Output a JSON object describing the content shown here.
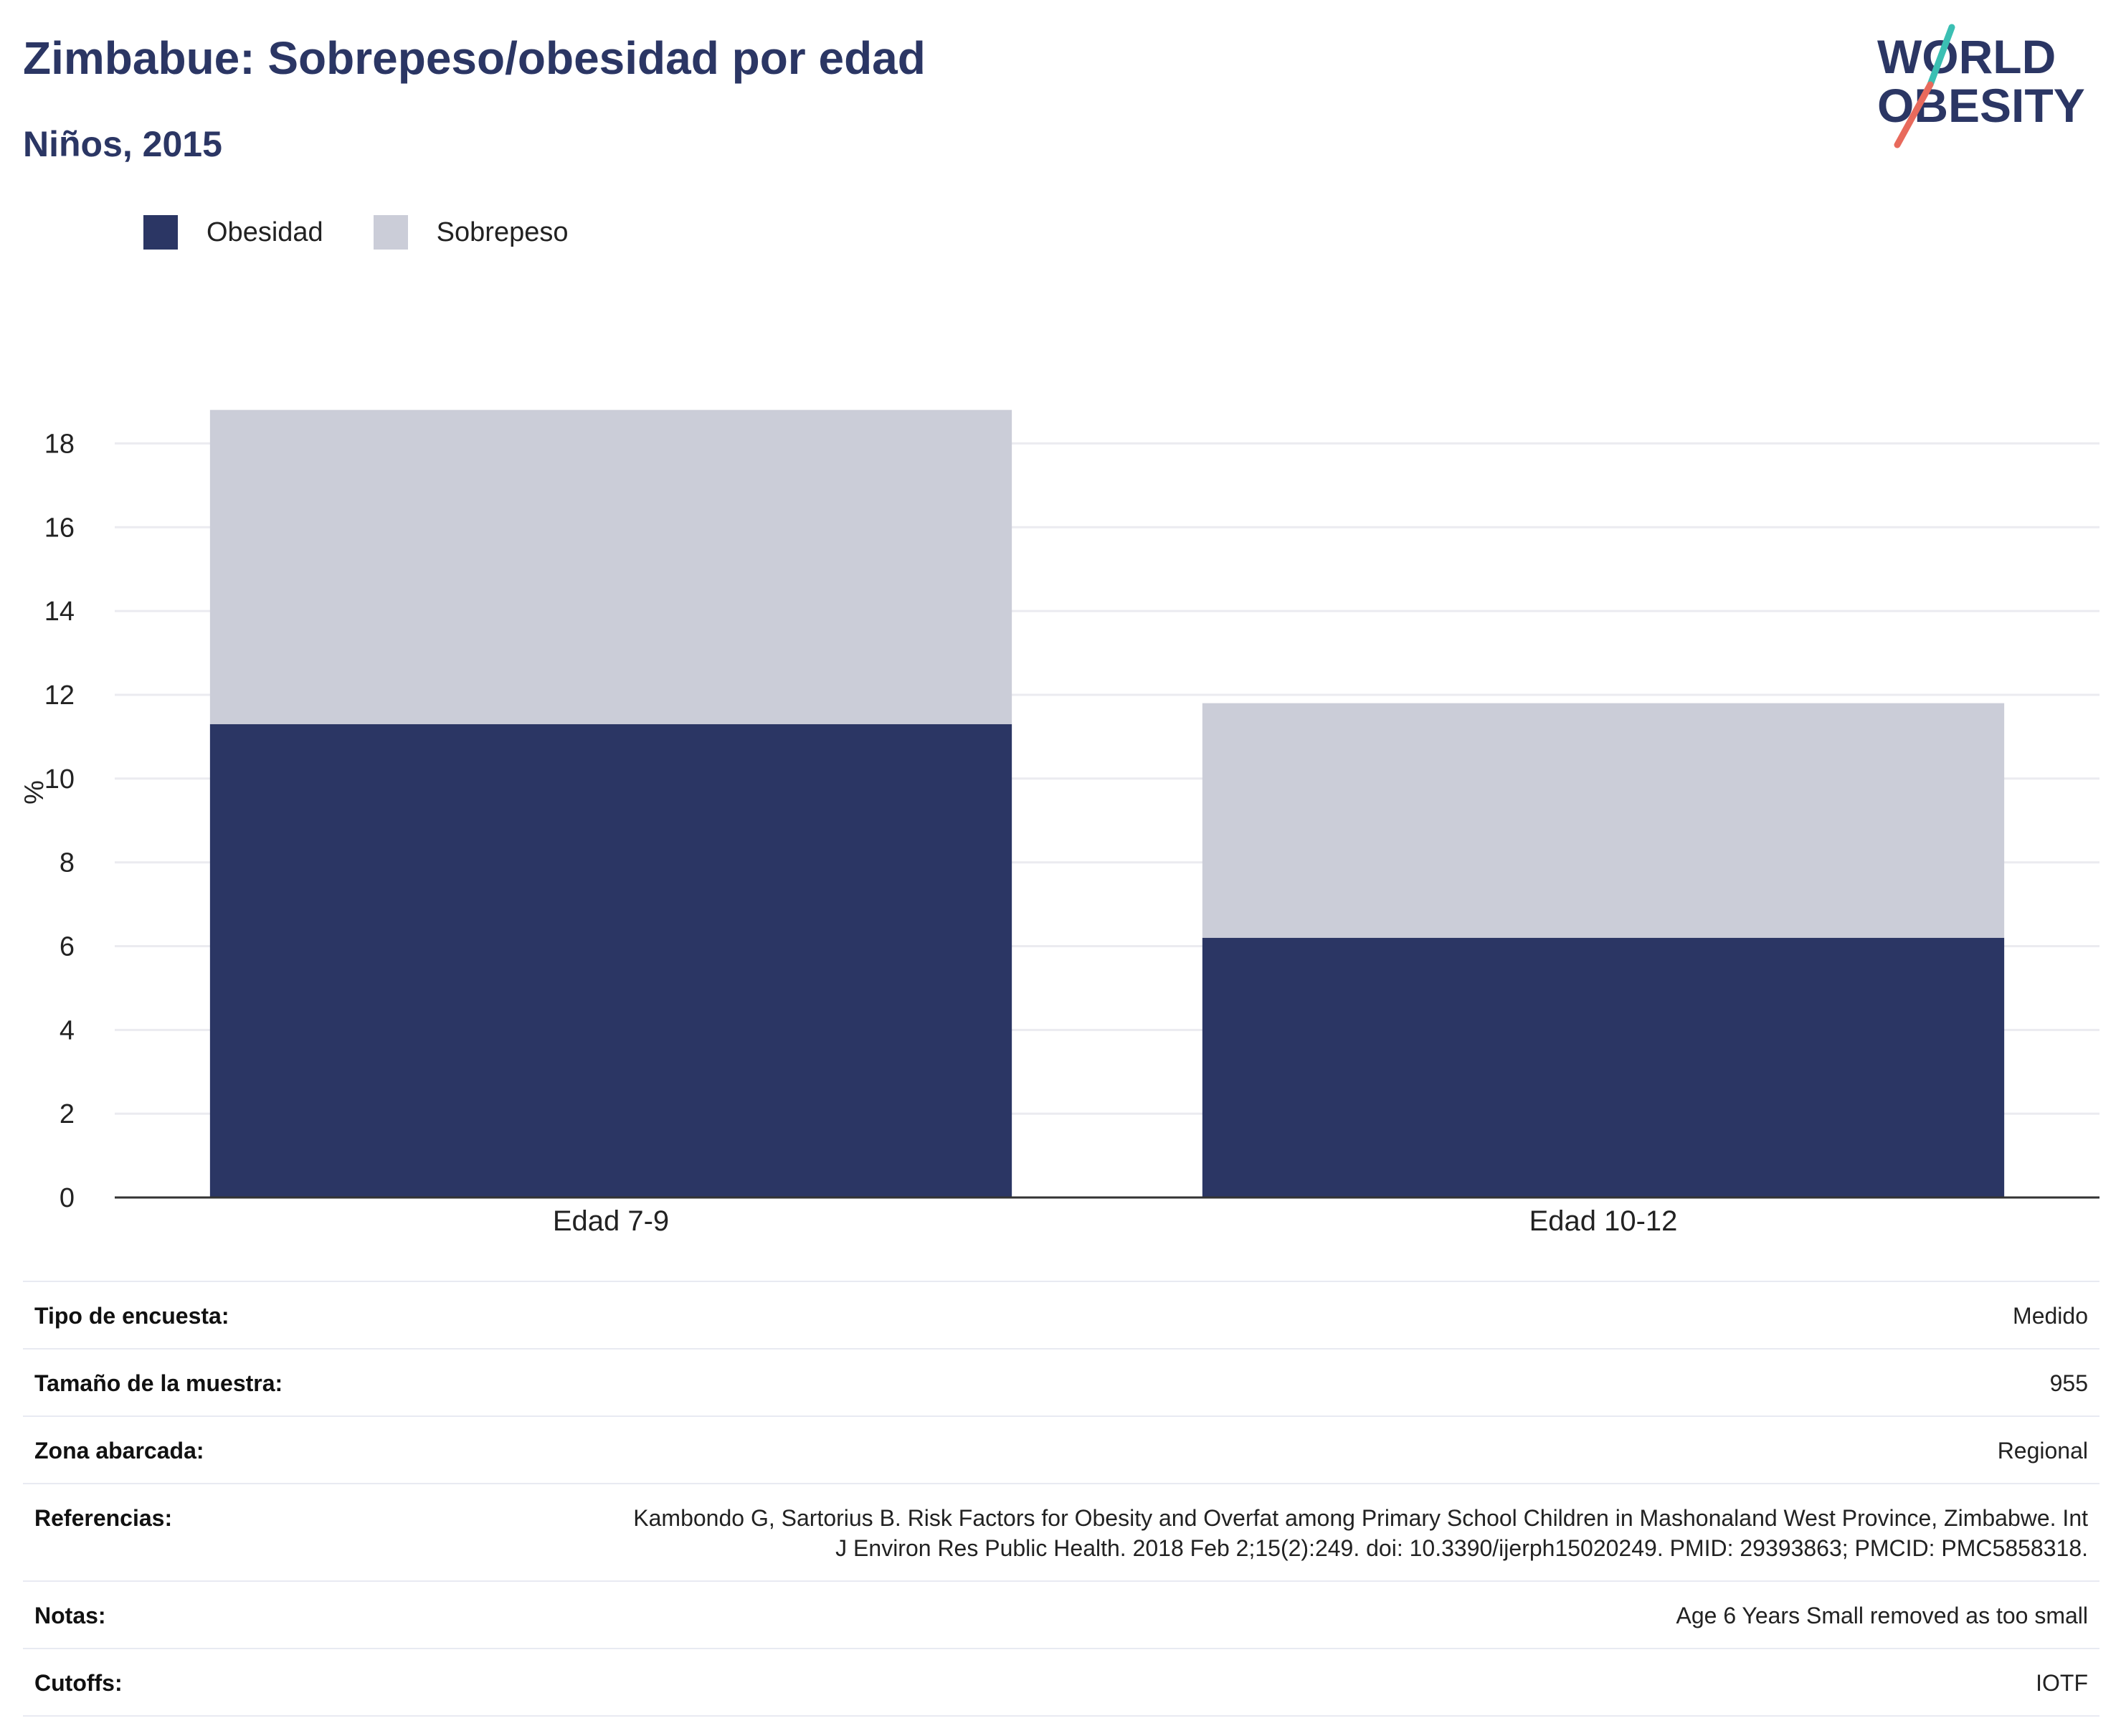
{
  "header": {
    "title": "Zimbabue: Sobrepeso/obesidad por edad",
    "subtitle": "Niños, 2015"
  },
  "logo": {
    "line1": "WORLD",
    "line2": "OBESITY"
  },
  "colors": {
    "obesidad": "#2b3664",
    "sobrepeso": "#cbcdd8",
    "grid": "#ebebf0",
    "axis": "#333333"
  },
  "chart_data": {
    "type": "bar",
    "stacked": true,
    "categories": [
      "Edad 7-9",
      "Edad 10-12"
    ],
    "series": [
      {
        "name": "Obesidad",
        "values": [
          11.3,
          6.2
        ]
      },
      {
        "name": "Sobrepeso",
        "values": [
          7.5,
          5.6
        ]
      }
    ],
    "ylabel": "%",
    "ylim": [
      0,
      19
    ],
    "yticks": [
      0,
      2,
      4,
      6,
      8,
      10,
      12,
      14,
      16,
      18
    ],
    "grid": true,
    "legend": "top-left"
  },
  "info": [
    {
      "key": "Tipo de encuesta:",
      "value": "Medido"
    },
    {
      "key": "Tamaño de la muestra:",
      "value": "955"
    },
    {
      "key": "Zona abarcada:",
      "value": "Regional"
    },
    {
      "key": "Referencias:",
      "value": "Kambondo G, Sartorius B. Risk Factors for Obesity and Overfat among Primary School Children in Mashonaland West Province, Zimbabwe. Int J Environ Res Public Health. 2018 Feb 2;15(2):249. doi: 10.3390/ijerph15020249. PMID: 29393863; PMCID: PMC5858318."
    },
    {
      "key": "Notas:",
      "value": "Age 6 Years Small removed as too small"
    },
    {
      "key": "Cutoffs:",
      "value": "IOTF"
    }
  ]
}
